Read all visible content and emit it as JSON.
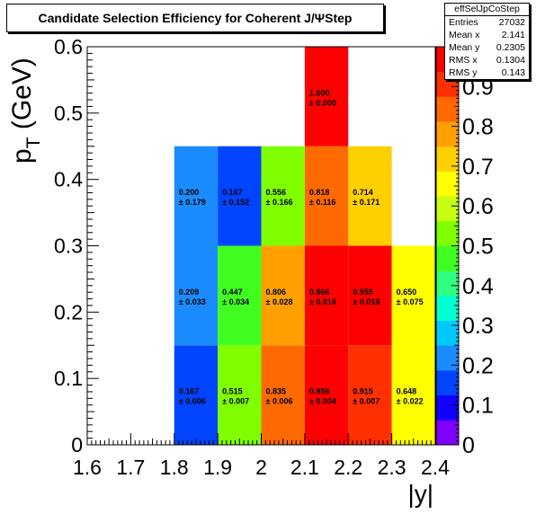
{
  "title": "Candidate Selection Efficiency for Coherent J/ΨStep",
  "stats": {
    "name": "effSelJpCoStep",
    "rows": [
      {
        "label": "Entries",
        "value": "27032"
      },
      {
        "label": "Mean x",
        "value": "2.141"
      },
      {
        "label": "Mean y",
        "value": "0.2305"
      },
      {
        "label": "RMS x",
        "value": "0.1304"
      },
      {
        "label": "RMS y",
        "value": "0.143"
      }
    ]
  },
  "chart_data": {
    "type": "heatmap",
    "xlabel": "|y|",
    "ylabel_main": "p",
    "ylabel_sub": "T",
    "ylabel_unit": " (GeV)",
    "xlim": [
      1.6,
      2.4
    ],
    "ylim": [
      0,
      0.6
    ],
    "zlim": [
      0,
      1
    ],
    "x_ticks": [
      "1.6",
      "1.7",
      "1.8",
      "1.9",
      "2",
      "2.1",
      "2.2",
      "2.3",
      "2.4"
    ],
    "y_ticks": [
      "0",
      "0.1",
      "0.2",
      "0.3",
      "0.4",
      "0.5",
      "0.6"
    ],
    "z_ticks": [
      "0",
      "0.1",
      "0.2",
      "0.3",
      "0.4",
      "0.5",
      "0.6",
      "0.7",
      "0.8",
      "0.9"
    ],
    "x_edges": [
      1.8,
      1.9,
      2.0,
      2.1,
      2.2,
      2.3,
      2.4
    ],
    "cells": [
      {
        "x0": 1.8,
        "x1": 1.9,
        "y0": 0.0,
        "y1": 0.15,
        "value": 0.167,
        "label": "0.167",
        "err": "± 0.006"
      },
      {
        "x0": 1.9,
        "x1": 2.0,
        "y0": 0.0,
        "y1": 0.15,
        "value": 0.515,
        "label": "0.515",
        "err": "± 0.007"
      },
      {
        "x0": 2.0,
        "x1": 2.1,
        "y0": 0.0,
        "y1": 0.15,
        "value": 0.835,
        "label": "0.835",
        "err": "± 0.006"
      },
      {
        "x0": 2.1,
        "x1": 2.2,
        "y0": 0.0,
        "y1": 0.15,
        "value": 0.956,
        "label": "0.956",
        "err": "± 0.004"
      },
      {
        "x0": 2.2,
        "x1": 2.3,
        "y0": 0.0,
        "y1": 0.15,
        "value": 0.915,
        "label": "0.915",
        "err": "± 0.007"
      },
      {
        "x0": 2.3,
        "x1": 2.4,
        "y0": 0.0,
        "y1": 0.15,
        "value": 0.648,
        "label": "0.648",
        "err": "± 0.022"
      },
      {
        "x0": 1.8,
        "x1": 1.9,
        "y0": 0.15,
        "y1": 0.3,
        "value": 0.209,
        "label": "0.209",
        "err": "± 0.033"
      },
      {
        "x0": 1.9,
        "x1": 2.0,
        "y0": 0.15,
        "y1": 0.3,
        "value": 0.447,
        "label": "0.447",
        "err": "± 0.034"
      },
      {
        "x0": 2.0,
        "x1": 2.1,
        "y0": 0.15,
        "y1": 0.3,
        "value": 0.806,
        "label": "0.806",
        "err": "± 0.028"
      },
      {
        "x0": 2.1,
        "x1": 2.2,
        "y0": 0.15,
        "y1": 0.3,
        "value": 0.966,
        "label": "0.966",
        "err": "± 0.014"
      },
      {
        "x0": 2.2,
        "x1": 2.3,
        "y0": 0.15,
        "y1": 0.3,
        "value": 0.955,
        "label": "0.955",
        "err": "± 0.018"
      },
      {
        "x0": 2.3,
        "x1": 2.4,
        "y0": 0.15,
        "y1": 0.3,
        "value": 0.65,
        "label": "0.650",
        "err": "± 0.075"
      },
      {
        "x0": 1.8,
        "x1": 1.9,
        "y0": 0.3,
        "y1": 0.45,
        "value": 0.2,
        "label": "0.200",
        "err": "± 0.179"
      },
      {
        "x0": 1.9,
        "x1": 2.0,
        "y0": 0.3,
        "y1": 0.45,
        "value": 0.167,
        "label": "0.167",
        "err": "± 0.152"
      },
      {
        "x0": 2.0,
        "x1": 2.1,
        "y0": 0.3,
        "y1": 0.45,
        "value": 0.556,
        "label": "0.556",
        "err": "± 0.166"
      },
      {
        "x0": 2.1,
        "x1": 2.2,
        "y0": 0.3,
        "y1": 0.45,
        "value": 0.818,
        "label": "0.818",
        "err": "± 0.116"
      },
      {
        "x0": 2.2,
        "x1": 2.3,
        "y0": 0.3,
        "y1": 0.45,
        "value": 0.714,
        "label": "0.714",
        "err": "± 0.171"
      },
      {
        "x0": 2.1,
        "x1": 2.2,
        "y0": 0.45,
        "y1": 0.6,
        "value": 1.0,
        "label": "1.000",
        "err": "± 0.000"
      }
    ],
    "palette": [
      "#7f00ff",
      "#1200ff",
      "#0044ff",
      "#1a8cff",
      "#00c8ff",
      "#00ffd0",
      "#30ff80",
      "#40ff20",
      "#80ff00",
      "#c8ff10",
      "#ffff00",
      "#ffd000",
      "#ffa000",
      "#ff6a00",
      "#ff3000",
      "#ff0000"
    ]
  }
}
